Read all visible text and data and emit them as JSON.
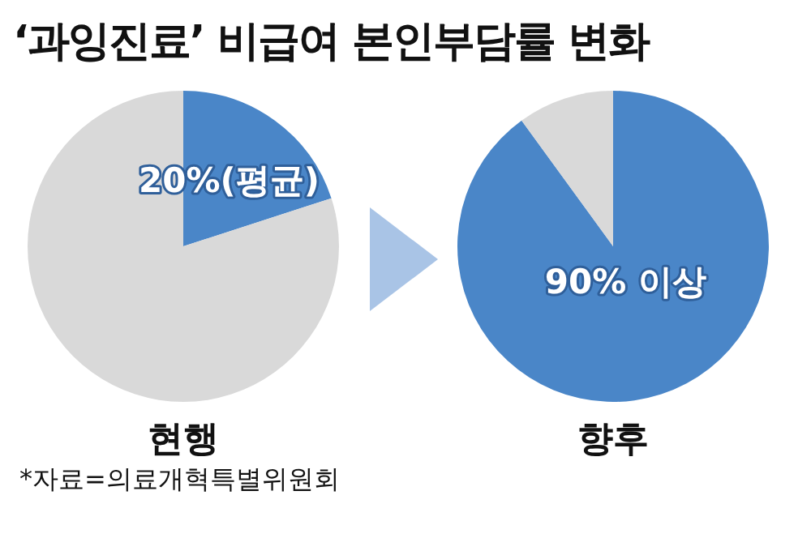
{
  "chart_data": [
    {
      "type": "pie",
      "title": "‘과잉진료’ 비급여 본인부담률 변화",
      "categories": [
        null,
        null
      ],
      "values": [
        20,
        80
      ],
      "colors": [
        "#4a86c8",
        "#d9d9d9"
      ],
      "value_labels": [
        "20%(평균)",
        null
      ],
      "xlabel": "현행",
      "annotations": [
        "*자료=의료개혁특별위원회"
      ]
    },
    {
      "type": "pie",
      "categories": [
        null,
        null
      ],
      "values": [
        90,
        10
      ],
      "colors": [
        "#4a86c8",
        "#d9d9d9"
      ],
      "value_labels": [
        "90% 이상",
        null
      ],
      "xlabel": "향후"
    }
  ]
}
